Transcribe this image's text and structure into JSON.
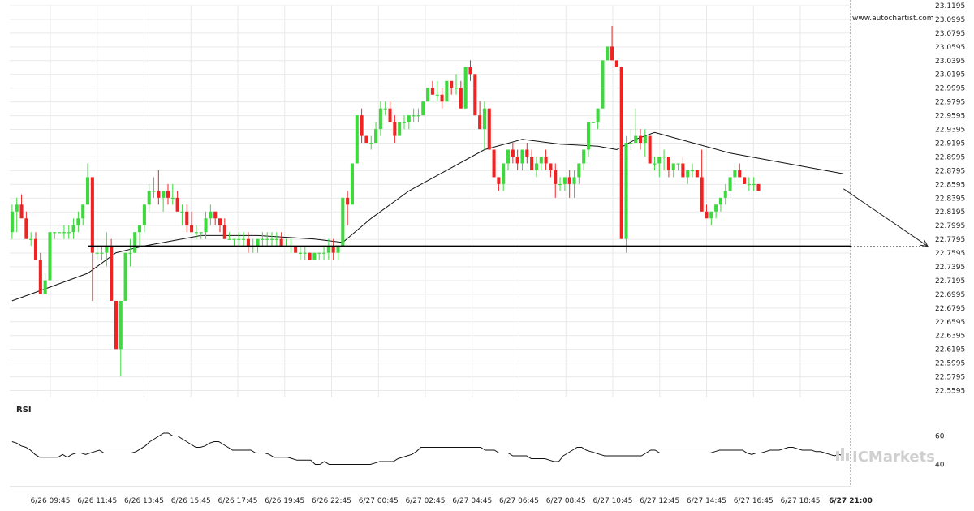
{
  "watermark": "www.autochartist.com",
  "brand": "ICMarkets",
  "rsi_label": "RSI",
  "colors": {
    "up": "#3fd83f",
    "down": "#f02323",
    "grid": "#e9e9e9",
    "line": "#000000"
  },
  "chart_data": {
    "type": "candlestick",
    "ylim": [
      22.5495,
      23.1195
    ],
    "yticks": [
      "23.1195",
      "23.0995",
      "23.0795",
      "23.0595",
      "23.0395",
      "23.0195",
      "22.9995",
      "22.9795",
      "22.9595",
      "22.9395",
      "22.9195",
      "22.8995",
      "22.8795",
      "22.8595",
      "22.8395",
      "22.8195",
      "22.7995",
      "22.7795",
      "22.7595",
      "22.7395",
      "22.7195",
      "22.6995",
      "22.6795",
      "22.6595",
      "22.6395",
      "22.6195",
      "22.5995",
      "22.5795",
      "22.5595"
    ],
    "xticks": [
      "6/26 09:45",
      "6/26 11:45",
      "6/26 13:45",
      "6/26 15:45",
      "6/26 17:45",
      "6/26 19:45",
      "6/26 22:45",
      "6/27 00:45",
      "6/27 02:45",
      "6/27 04:45",
      "6/27 06:45",
      "6/27 08:45",
      "6/27 10:45",
      "6/27 12:45",
      "6/27 14:45",
      "6/27 16:45",
      "6/27 18:45",
      "6/27 21:00"
    ],
    "n_slots": 178,
    "candles": [
      [
        22.79,
        22.83,
        22.78,
        22.82
      ],
      [
        22.82,
        22.84,
        22.79,
        22.83
      ],
      [
        22.83,
        22.845,
        22.81,
        22.81
      ],
      [
        22.81,
        22.82,
        22.78,
        22.78
      ],
      [
        22.78,
        22.79,
        22.77,
        22.78
      ],
      [
        22.78,
        22.79,
        22.75,
        22.75
      ],
      [
        22.75,
        22.76,
        22.7,
        22.7
      ],
      [
        22.7,
        22.73,
        22.7,
        22.72
      ],
      [
        22.72,
        22.79,
        22.71,
        22.79
      ],
      [
        22.79,
        22.79,
        22.78,
        22.79
      ],
      [
        22.79,
        22.79,
        22.79,
        22.79
      ],
      [
        22.79,
        22.8,
        22.78,
        22.79
      ],
      [
        22.79,
        22.8,
        22.78,
        22.79
      ],
      [
        22.79,
        22.81,
        22.78,
        22.8
      ],
      [
        22.8,
        22.82,
        22.79,
        22.81
      ],
      [
        22.81,
        22.83,
        22.8,
        22.83
      ],
      [
        22.83,
        22.89,
        22.83,
        22.87
      ],
      [
        22.87,
        22.87,
        22.69,
        22.76
      ],
      [
        22.76,
        22.77,
        22.75,
        22.76
      ],
      [
        22.76,
        22.77,
        22.75,
        22.76
      ],
      [
        22.76,
        22.79,
        22.74,
        22.77
      ],
      [
        22.77,
        22.78,
        22.69,
        22.69
      ],
      [
        22.69,
        22.69,
        22.62,
        22.62
      ],
      [
        22.62,
        22.69,
        22.58,
        22.69
      ],
      [
        22.69,
        22.76,
        22.69,
        22.76
      ],
      [
        22.76,
        22.78,
        22.74,
        22.76
      ],
      [
        22.76,
        22.79,
        22.76,
        22.79
      ],
      [
        22.79,
        22.8,
        22.77,
        22.8
      ],
      [
        22.8,
        22.83,
        22.79,
        22.83
      ],
      [
        22.83,
        22.86,
        22.82,
        22.85
      ],
      [
        22.85,
        22.87,
        22.84,
        22.85
      ],
      [
        22.85,
        22.88,
        22.83,
        22.84
      ],
      [
        22.84,
        22.85,
        22.82,
        22.85
      ],
      [
        22.85,
        22.86,
        22.83,
        22.84
      ],
      [
        22.84,
        22.86,
        22.83,
        22.84
      ],
      [
        22.84,
        22.85,
        22.82,
        22.82
      ],
      [
        22.82,
        22.83,
        22.8,
        22.82
      ],
      [
        22.82,
        22.83,
        22.79,
        22.8
      ],
      [
        22.8,
        22.82,
        22.79,
        22.79
      ],
      [
        22.79,
        22.8,
        22.78,
        22.79
      ],
      [
        22.79,
        22.79,
        22.78,
        22.79
      ],
      [
        22.79,
        22.82,
        22.78,
        22.81
      ],
      [
        22.81,
        22.83,
        22.8,
        22.82
      ],
      [
        22.82,
        22.82,
        22.8,
        22.81
      ],
      [
        22.81,
        22.81,
        22.79,
        22.8
      ],
      [
        22.8,
        22.81,
        22.78,
        22.78
      ],
      [
        22.78,
        22.79,
        22.78,
        22.78
      ],
      [
        22.78,
        22.78,
        22.77,
        22.78
      ],
      [
        22.78,
        22.79,
        22.77,
        22.78
      ],
      [
        22.78,
        22.79,
        22.77,
        22.78
      ],
      [
        22.78,
        22.79,
        22.76,
        22.77
      ],
      [
        22.77,
        22.78,
        22.76,
        22.77
      ],
      [
        22.77,
        22.78,
        22.76,
        22.78
      ],
      [
        22.78,
        22.79,
        22.77,
        22.78
      ],
      [
        22.78,
        22.79,
        22.77,
        22.78
      ],
      [
        22.78,
        22.79,
        22.77,
        22.78
      ],
      [
        22.78,
        22.79,
        22.77,
        22.78
      ],
      [
        22.78,
        22.79,
        22.77,
        22.77
      ],
      [
        22.77,
        22.78,
        22.77,
        22.77
      ],
      [
        22.77,
        22.78,
        22.76,
        22.77
      ],
      [
        22.77,
        22.77,
        22.76,
        22.76
      ],
      [
        22.76,
        22.77,
        22.75,
        22.76
      ],
      [
        22.76,
        22.77,
        22.75,
        22.76
      ],
      [
        22.76,
        22.76,
        22.75,
        22.75
      ],
      [
        22.75,
        22.76,
        22.75,
        22.76
      ],
      [
        22.76,
        22.76,
        22.75,
        22.76
      ],
      [
        22.76,
        22.77,
        22.75,
        22.76
      ],
      [
        22.76,
        22.78,
        22.75,
        22.77
      ],
      [
        22.77,
        22.78,
        22.75,
        22.76
      ],
      [
        22.76,
        22.77,
        22.75,
        22.77
      ],
      [
        22.77,
        22.84,
        22.77,
        22.84
      ],
      [
        22.84,
        22.85,
        22.8,
        22.83
      ],
      [
        22.83,
        22.89,
        22.83,
        22.89
      ],
      [
        22.89,
        22.96,
        22.89,
        22.96
      ],
      [
        22.96,
        22.97,
        22.92,
        22.93
      ],
      [
        22.93,
        22.93,
        22.92,
        22.92
      ],
      [
        22.92,
        22.93,
        22.91,
        22.92
      ],
      [
        22.92,
        22.95,
        22.92,
        22.94
      ],
      [
        22.94,
        22.98,
        22.93,
        22.97
      ],
      [
        22.97,
        22.98,
        22.96,
        22.97
      ],
      [
        22.97,
        22.98,
        22.95,
        22.95
      ],
      [
        22.95,
        22.96,
        22.92,
        22.93
      ],
      [
        22.93,
        22.95,
        22.93,
        22.95
      ],
      [
        22.95,
        22.96,
        22.94,
        22.95
      ],
      [
        22.95,
        22.96,
        22.94,
        22.96
      ],
      [
        22.96,
        22.97,
        22.95,
        22.96
      ],
      [
        22.96,
        22.97,
        22.95,
        22.96
      ],
      [
        22.96,
        22.98,
        22.96,
        22.98
      ],
      [
        22.98,
        23.0,
        22.98,
        23.0
      ],
      [
        23.0,
        23.01,
        22.99,
        22.99
      ],
      [
        22.99,
        23.01,
        22.98,
        22.99
      ],
      [
        22.99,
        23.0,
        22.97,
        22.98
      ],
      [
        22.98,
        23.01,
        22.98,
        23.01
      ],
      [
        23.01,
        23.01,
        22.99,
        23.0
      ],
      [
        23.0,
        23.02,
        22.99,
        23.0
      ],
      [
        23.0,
        23.01,
        22.97,
        22.97
      ],
      [
        22.97,
        23.03,
        22.97,
        23.03
      ],
      [
        23.03,
        23.04,
        23.01,
        23.02
      ],
      [
        23.02,
        23.02,
        22.96,
        22.96
      ],
      [
        22.96,
        22.98,
        22.94,
        22.94
      ],
      [
        22.94,
        22.98,
        22.91,
        22.97
      ],
      [
        22.97,
        22.97,
        22.91,
        22.91
      ],
      [
        22.91,
        22.91,
        22.87,
        22.87
      ],
      [
        22.87,
        22.87,
        22.85,
        22.86
      ],
      [
        22.86,
        22.89,
        22.85,
        22.89
      ],
      [
        22.89,
        22.91,
        22.88,
        22.91
      ],
      [
        22.91,
        22.92,
        22.89,
        22.9
      ],
      [
        22.9,
        22.91,
        22.88,
        22.89
      ],
      [
        22.89,
        22.91,
        22.88,
        22.91
      ],
      [
        22.91,
        22.92,
        22.89,
        22.9
      ],
      [
        22.9,
        22.91,
        22.88,
        22.88
      ],
      [
        22.88,
        22.9,
        22.87,
        22.89
      ],
      [
        22.89,
        22.9,
        22.88,
        22.9
      ],
      [
        22.9,
        22.91,
        22.88,
        22.89
      ],
      [
        22.89,
        22.89,
        22.87,
        22.88
      ],
      [
        22.88,
        22.89,
        22.84,
        22.86
      ],
      [
        22.86,
        22.87,
        22.85,
        22.86
      ],
      [
        22.86,
        22.87,
        22.85,
        22.87
      ],
      [
        22.87,
        22.88,
        22.84,
        22.86
      ],
      [
        22.86,
        22.88,
        22.84,
        22.87
      ],
      [
        22.87,
        22.89,
        22.86,
        22.89
      ],
      [
        22.89,
        22.91,
        22.88,
        22.91
      ],
      [
        22.91,
        22.95,
        22.9,
        22.95
      ],
      [
        22.95,
        22.95,
        22.95,
        22.95
      ],
      [
        22.95,
        22.97,
        22.94,
        22.97
      ],
      [
        22.97,
        23.04,
        22.97,
        23.04
      ],
      [
        23.04,
        23.06,
        23.04,
        23.06
      ],
      [
        23.06,
        23.09,
        23.04,
        23.04
      ],
      [
        23.04,
        23.04,
        23.03,
        23.03
      ],
      [
        23.03,
        23.03,
        22.78,
        22.78
      ],
      [
        22.78,
        22.93,
        22.76,
        22.92
      ],
      [
        22.92,
        22.94,
        22.91,
        22.92
      ],
      [
        22.92,
        22.97,
        22.92,
        22.93
      ],
      [
        22.93,
        22.94,
        22.91,
        22.92
      ],
      [
        22.92,
        22.94,
        22.9,
        22.93
      ],
      [
        22.93,
        22.93,
        22.89,
        22.89
      ],
      [
        22.89,
        22.9,
        22.88,
        22.89
      ],
      [
        22.89,
        22.9,
        22.87,
        22.9
      ],
      [
        22.9,
        22.91,
        22.88,
        22.9
      ],
      [
        22.9,
        22.9,
        22.87,
        22.88
      ],
      [
        22.88,
        22.89,
        22.87,
        22.89
      ],
      [
        22.89,
        22.89,
        22.88,
        22.89
      ],
      [
        22.89,
        22.9,
        22.87,
        22.87
      ],
      [
        22.87,
        22.88,
        22.86,
        22.88
      ],
      [
        22.88,
        22.89,
        22.87,
        22.88
      ],
      [
        22.88,
        22.88,
        22.87,
        22.87
      ],
      [
        22.87,
        22.91,
        22.82,
        22.82
      ],
      [
        22.82,
        22.83,
        22.81,
        22.81
      ],
      [
        22.81,
        22.82,
        22.8,
        22.82
      ],
      [
        22.82,
        22.83,
        22.81,
        22.83
      ],
      [
        22.83,
        22.84,
        22.82,
        22.84
      ],
      [
        22.84,
        22.86,
        22.83,
        22.85
      ],
      [
        22.85,
        22.87,
        22.84,
        22.87
      ],
      [
        22.87,
        22.89,
        22.86,
        22.88
      ],
      [
        22.88,
        22.89,
        22.87,
        22.87
      ],
      [
        22.87,
        22.87,
        22.86,
        22.86
      ],
      [
        22.86,
        22.87,
        22.85,
        22.86
      ],
      [
        22.86,
        22.87,
        22.85,
        22.86
      ],
      [
        22.86,
        22.86,
        22.85,
        22.85
      ]
    ],
    "moving_average": [
      [
        0,
        22.69
      ],
      [
        8,
        22.71
      ],
      [
        16,
        22.73
      ],
      [
        22,
        22.76
      ],
      [
        28,
        22.77
      ],
      [
        40,
        22.785
      ],
      [
        52,
        22.785
      ],
      [
        64,
        22.78
      ],
      [
        70,
        22.775
      ],
      [
        76,
        22.81
      ],
      [
        84,
        22.85
      ],
      [
        92,
        22.88
      ],
      [
        100,
        22.91
      ],
      [
        108,
        22.925
      ],
      [
        116,
        22.918
      ],
      [
        124,
        22.915
      ],
      [
        128,
        22.91
      ],
      [
        132,
        22.925
      ],
      [
        136,
        22.935
      ],
      [
        144,
        22.92
      ],
      [
        152,
        22.905
      ],
      [
        160,
        22.895
      ],
      [
        168,
        22.885
      ],
      [
        176,
        22.875
      ]
    ],
    "support_level": 22.7695,
    "forecast_arrow": {
      "from": [
        176,
        22.853
      ],
      "to": [
        22.7695
      ]
    },
    "rsi": {
      "yticks": [
        "60",
        "40"
      ],
      "ylim": [
        30,
        70
      ],
      "values": [
        56,
        55,
        53,
        52,
        50,
        47,
        45,
        45,
        45,
        45,
        45,
        47,
        45,
        47,
        48,
        48,
        47,
        48,
        49,
        50,
        48,
        48,
        48,
        48,
        48,
        48,
        48,
        49,
        51,
        53,
        56,
        58,
        60,
        62,
        62,
        60,
        60,
        58,
        56,
        54,
        52,
        52,
        53,
        55,
        56,
        56,
        54,
        52,
        50,
        50,
        50,
        50,
        50,
        48,
        48,
        48,
        47,
        45,
        45,
        45,
        45,
        44,
        43,
        43,
        43,
        43,
        40,
        40,
        42,
        40,
        40,
        40,
        40,
        40,
        40,
        40,
        40,
        40,
        40,
        41,
        42,
        42,
        42,
        42,
        44,
        45,
        46,
        47,
        49,
        52,
        52,
        52,
        52,
        52,
        52,
        52,
        52,
        52,
        52,
        52,
        52,
        52,
        52,
        50,
        50,
        50,
        48,
        48,
        48,
        46,
        46,
        46,
        46,
        44,
        44,
        44,
        44,
        43,
        42,
        42,
        46,
        48,
        50,
        52,
        52,
        50,
        49,
        48,
        47,
        46,
        46,
        46,
        46,
        46,
        46,
        46,
        46,
        46,
        48,
        50,
        50,
        48,
        48,
        48,
        48,
        48,
        48,
        48,
        48,
        48,
        48,
        48,
        48,
        49,
        50,
        50,
        50,
        50,
        50,
        50,
        48,
        47,
        48,
        48,
        49,
        50,
        50,
        50,
        51,
        52,
        52,
        51,
        50,
        50,
        50,
        49,
        49,
        48,
        47,
        46,
        47,
        46
      ]
    }
  }
}
